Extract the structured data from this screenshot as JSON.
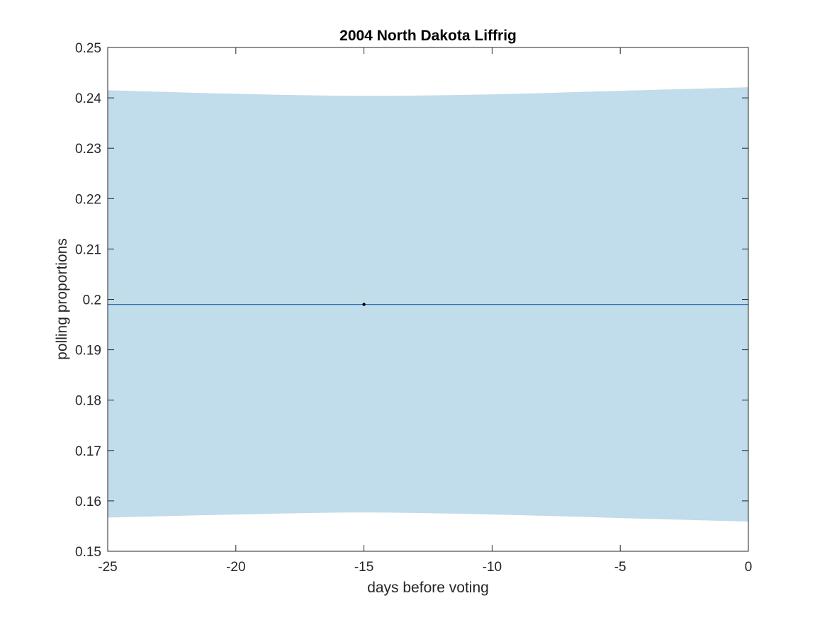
{
  "chart_data": {
    "type": "line",
    "title": "2004 North Dakota Liffrig",
    "xlabel": "days before voting",
    "ylabel": "polling proportions",
    "xlim": [
      -25,
      0
    ],
    "ylim": [
      0.15,
      0.25
    ],
    "xticks": [
      -25,
      -20,
      -15,
      -10,
      -5,
      0
    ],
    "xtick_labels": [
      "-25",
      "-20",
      "-15",
      "-10",
      "-5",
      "0"
    ],
    "yticks": [
      0.15,
      0.16,
      0.17,
      0.18,
      0.19,
      0.2,
      0.21,
      0.22,
      0.23,
      0.24,
      0.25
    ],
    "ytick_labels": [
      "0.15",
      "0.16",
      "0.17",
      "0.18",
      "0.19",
      "0.2",
      "0.21",
      "0.22",
      "0.23",
      "0.24",
      "0.25"
    ],
    "grid": false,
    "band": {
      "x": [
        -25,
        -20,
        -15,
        -10,
        -5,
        0
      ],
      "upper": [
        0.2415,
        0.2408,
        0.2404,
        0.2407,
        0.2414,
        0.2421
      ],
      "lower": [
        0.1567,
        0.1573,
        0.1577,
        0.1573,
        0.1566,
        0.1559
      ]
    },
    "series": [
      {
        "x": [
          -25,
          0
        ],
        "y": [
          0.199,
          0.199
        ]
      }
    ],
    "points": [
      {
        "x": -15,
        "y": 0.199
      }
    ],
    "colors": {
      "band": "#c1dcea",
      "line": "#2a6fb0",
      "point": "#000000",
      "axis": "#262626"
    }
  }
}
